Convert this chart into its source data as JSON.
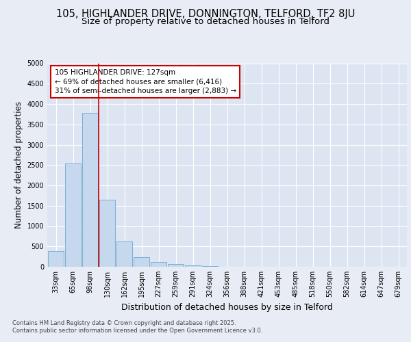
{
  "title": "105, HIGHLANDER DRIVE, DONNINGTON, TELFORD, TF2 8JU",
  "subtitle": "Size of property relative to detached houses in Telford",
  "xlabel": "Distribution of detached houses by size in Telford",
  "ylabel": "Number of detached properties",
  "categories": [
    "33sqm",
    "65sqm",
    "98sqm",
    "130sqm",
    "162sqm",
    "195sqm",
    "227sqm",
    "259sqm",
    "291sqm",
    "324sqm",
    "356sqm",
    "388sqm",
    "421sqm",
    "453sqm",
    "485sqm",
    "518sqm",
    "550sqm",
    "582sqm",
    "614sqm",
    "647sqm",
    "679sqm"
  ],
  "bar_values": [
    380,
    2540,
    3780,
    1650,
    620,
    240,
    110,
    60,
    30,
    10,
    5,
    0,
    0,
    0,
    0,
    0,
    0,
    0,
    0,
    0,
    0
  ],
  "bar_color": "#c5d8ee",
  "bar_edge_color": "#7aafd4",
  "vline_color": "#cc0000",
  "annotation_box_text": "105 HIGHLANDER DRIVE: 127sqm\n← 69% of detached houses are smaller (6,416)\n31% of semi-detached houses are larger (2,883) →",
  "annotation_box_color": "#cc0000",
  "annotation_box_fill": "#ffffff",
  "ylim": [
    0,
    5000
  ],
  "yticks": [
    0,
    500,
    1000,
    1500,
    2000,
    2500,
    3000,
    3500,
    4000,
    4500,
    5000
  ],
  "background_color": "#e8edf5",
  "plot_bg_color": "#dde5f2",
  "grid_color": "#ffffff",
  "footer_text": "Contains HM Land Registry data © Crown copyright and database right 2025.\nContains public sector information licensed under the Open Government Licence v3.0.",
  "title_fontsize": 10.5,
  "subtitle_fontsize": 9.5,
  "xlabel_fontsize": 9,
  "ylabel_fontsize": 8.5,
  "tick_fontsize": 7,
  "annotation_fontsize": 7.5,
  "footer_fontsize": 6
}
